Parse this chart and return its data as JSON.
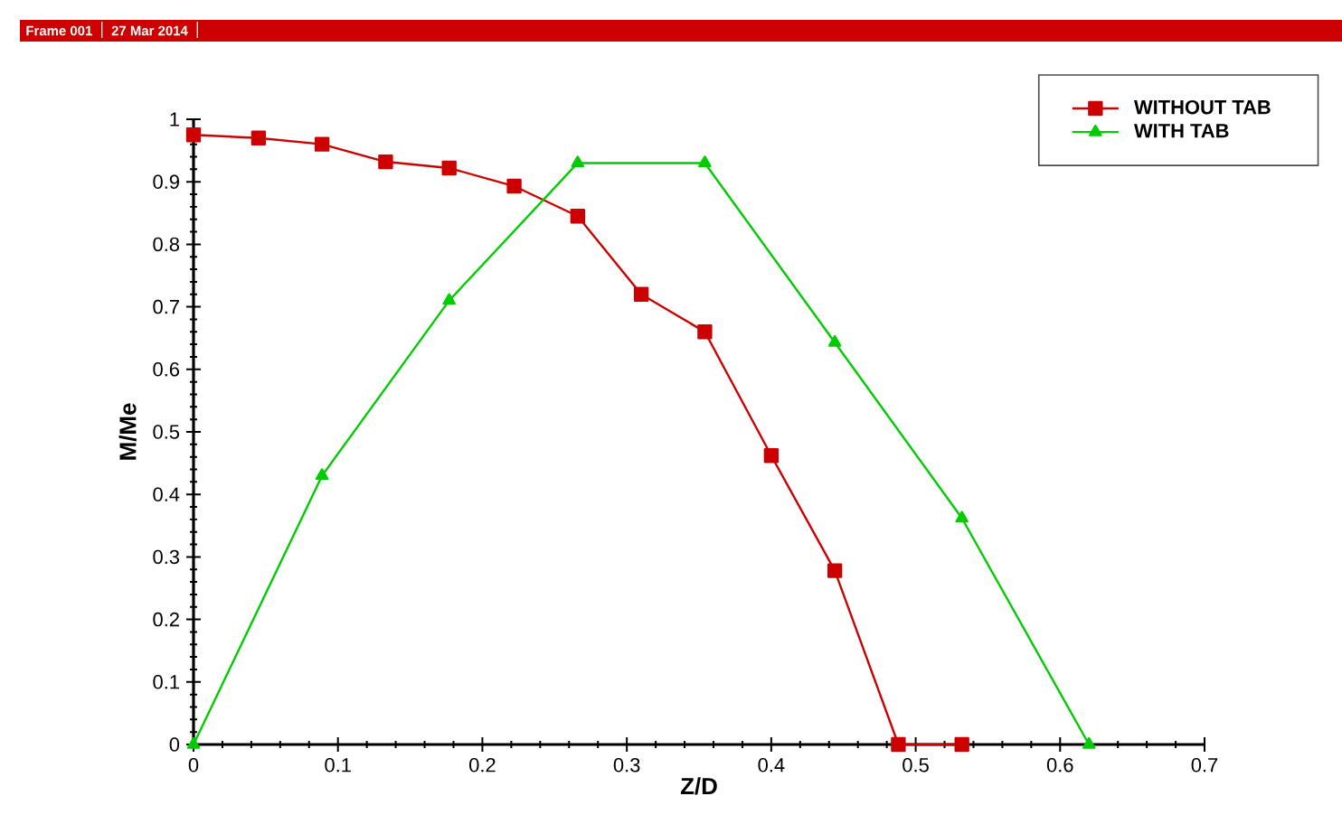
{
  "chart_data": {
    "type": "line",
    "xlabel": "Z/D",
    "ylabel": "M/Me",
    "annotations": [
      "Frame 001",
      "27 Mar 2014"
    ],
    "xlim": [
      0,
      0.7
    ],
    "ylim": [
      0,
      1
    ],
    "xticks": [
      0,
      0.1,
      0.2,
      0.3,
      0.4,
      0.5,
      0.6,
      0.7
    ],
    "yticks": [
      0,
      0.1,
      0.2,
      0.3,
      0.4,
      0.5,
      0.6,
      0.7,
      0.8,
      0.9,
      1
    ],
    "grid": false,
    "legend": "top right",
    "series": [
      {
        "name": "WITHOUT TAB",
        "color": "#cc0000",
        "marker": "square",
        "x": [
          0,
          0.045,
          0.089,
          0.133,
          0.177,
          0.222,
          0.266,
          0.31,
          0.354,
          0.4,
          0.444,
          0.488,
          0.532
        ],
        "values": [
          0.975,
          0.97,
          0.96,
          0.932,
          0.922,
          0.893,
          0.845,
          0.72,
          0.66,
          0.462,
          0.278,
          0,
          0
        ]
      },
      {
        "name": "WITH TAB",
        "color": "#00cc00",
        "marker": "triangle",
        "x": [
          0,
          0.089,
          0.177,
          0.266,
          0.354,
          0.444,
          0.532,
          0.62
        ],
        "values": [
          0,
          0.43,
          0.71,
          0.93,
          0.93,
          0.643,
          0.362,
          0
        ]
      }
    ]
  }
}
